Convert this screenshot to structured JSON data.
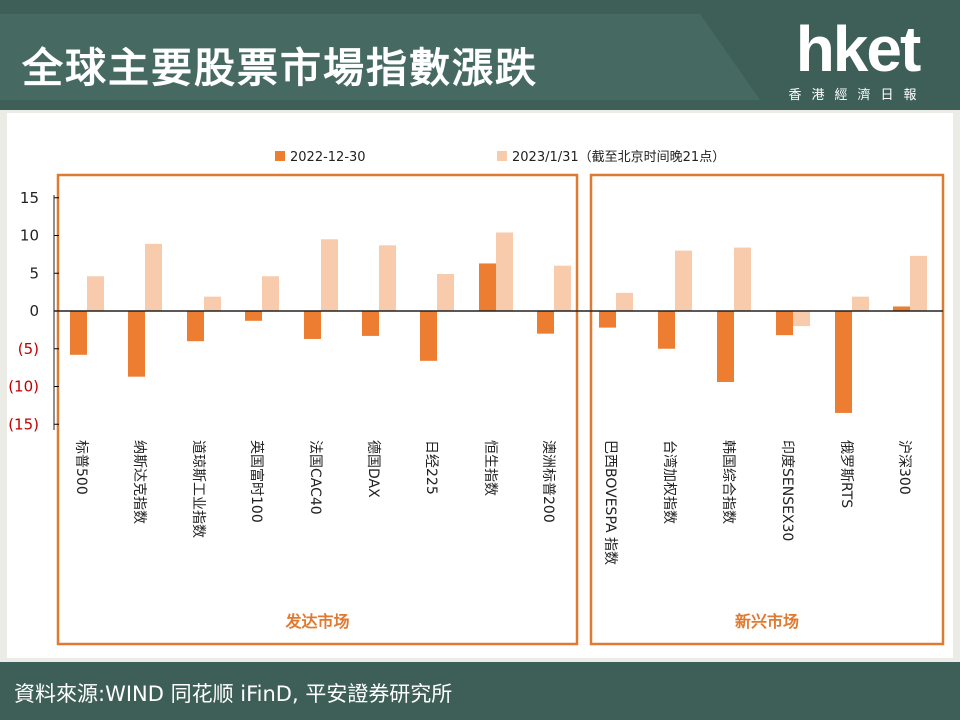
{
  "header": {
    "title": "全球主要股票市場指數漲跌",
    "logo_text": "hket",
    "logo_subtitle": "香港經濟日報"
  },
  "footer": {
    "source": "資料來源:WIND 同花顺 iFinD, 平安證券研究所"
  },
  "colors": {
    "header_bg": "#3e5f58",
    "series_2022": "#ed7d31",
    "series_2023": "#f8cbad",
    "group_border": "#e07a30",
    "negative_tick": "#c00000"
  },
  "chart_data": {
    "type": "bar",
    "legend_position": "top",
    "grid": false,
    "ylim": [
      -15,
      15
    ],
    "yticks": [
      15,
      10,
      5,
      0,
      -5,
      -10,
      -15
    ],
    "ytick_labels": [
      "15",
      "10",
      "5",
      "0",
      "(5)",
      "(10)",
      "(15)"
    ],
    "categories": [
      "标普500",
      "纳斯达克指数",
      "道琼斯工业指数",
      "英国富时100",
      "法国CAC40",
      "德国DAX",
      "日经225",
      "恒生指数",
      "澳洲标普200",
      "巴西BOVESPA 指数",
      "台湾加权指数",
      "韩国综合指数",
      "印度SENSEX30",
      "俄罗斯RTS",
      "沪深300"
    ],
    "series": [
      {
        "name": "2022-12-30",
        "values": [
          -5.8,
          -8.7,
          -4.0,
          -1.3,
          -3.7,
          -3.3,
          -6.6,
          6.3,
          -3.0,
          -2.2,
          -5.0,
          -9.4,
          -3.2,
          -13.5,
          0.6
        ]
      },
      {
        "name": "2023/1/31（截至北京时间晚21点）",
        "values": [
          4.6,
          8.9,
          1.9,
          4.6,
          9.5,
          8.7,
          4.9,
          10.4,
          6.0,
          2.4,
          8.0,
          8.4,
          -2.0,
          1.9,
          7.3
        ]
      }
    ],
    "groups": [
      {
        "label": "发达市场",
        "start": 0,
        "end": 8
      },
      {
        "label": "新兴市场",
        "start": 9,
        "end": 14
      }
    ]
  }
}
